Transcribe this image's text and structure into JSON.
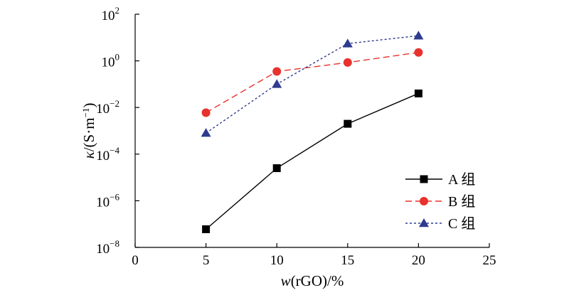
{
  "chart_data": {
    "type": "line",
    "title": "",
    "xlabel": {
      "italic": "w",
      "rest": "(rGO)/%"
    },
    "ylabel": {
      "italic": "κ",
      "rest": "/(S·m",
      "sup": "−1",
      "close": ")"
    },
    "x_scale": "linear",
    "y_scale": "log",
    "xlim": [
      0,
      25
    ],
    "ylim": [
      1e-08,
      100
    ],
    "x_ticks": [
      0,
      5,
      10,
      15,
      20,
      25
    ],
    "y_ticks": [
      {
        "value": 1e-08,
        "base": "10",
        "exp": "−8"
      },
      {
        "value": 1e-06,
        "base": "10",
        "exp": "−6"
      },
      {
        "value": 0.0001,
        "base": "10",
        "exp": "−4"
      },
      {
        "value": 0.01,
        "base": "10",
        "exp": "−2"
      },
      {
        "value": 1,
        "base": "10",
        "exp": "0"
      },
      {
        "value": 100,
        "base": "10",
        "exp": "2"
      }
    ],
    "grid": false,
    "legend_position": "bottom-right",
    "series": [
      {
        "name": "A 组",
        "color": "#000000",
        "marker": "square",
        "line": "solid",
        "x": [
          5,
          10,
          15,
          20
        ],
        "y": [
          6e-08,
          2.5e-05,
          0.002,
          0.04
        ]
      },
      {
        "name": "B 组",
        "color": "#e8322d",
        "marker": "circle",
        "line": "dashed",
        "x": [
          5,
          10,
          15,
          20
        ],
        "y": [
          0.006,
          0.35,
          0.85,
          2.3
        ]
      },
      {
        "name": "C 组",
        "color": "#2e3b8f",
        "marker": "triangle",
        "line": "dotted",
        "x": [
          5,
          10,
          15,
          20
        ],
        "y": [
          0.0008,
          0.1,
          5.5,
          12
        ]
      }
    ]
  }
}
